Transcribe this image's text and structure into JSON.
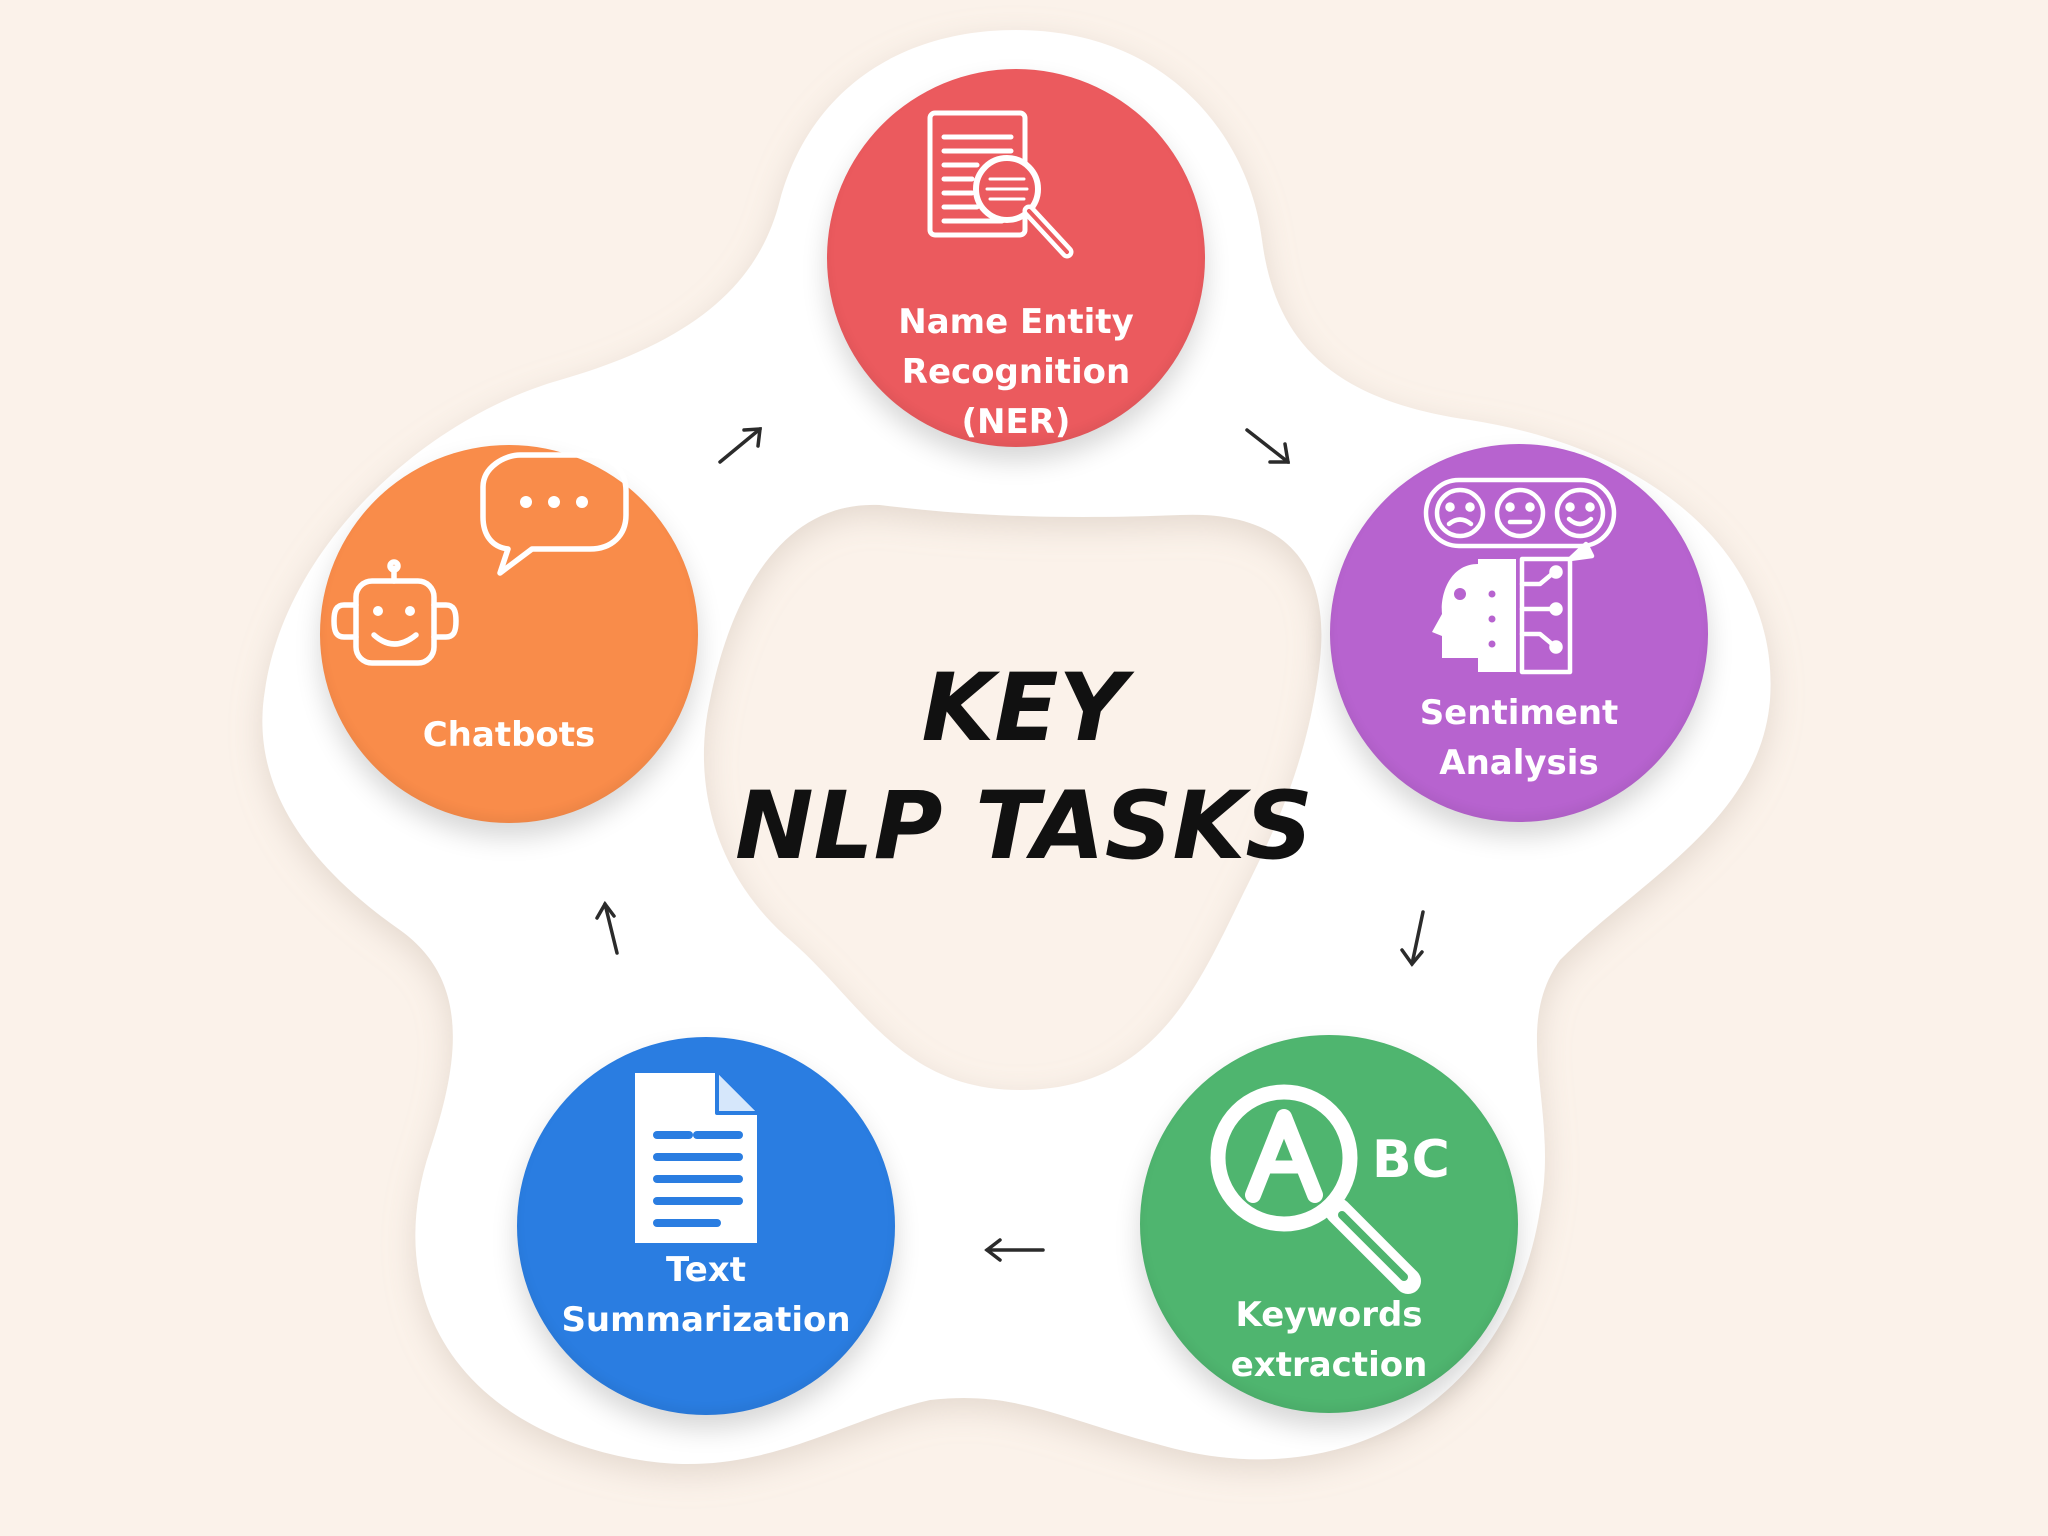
{
  "title": {
    "line1": "KEY",
    "line2": "NLP TASKS"
  },
  "nodes": [
    {
      "id": "ner",
      "label_lines": [
        "Name Entity",
        "Recognition",
        "(NER)"
      ],
      "color": "#eb5a5e",
      "icon": "document-magnifier-icon"
    },
    {
      "id": "sentiment",
      "label_lines": [
        "Sentiment",
        "Analysis"
      ],
      "color": "#b763cf",
      "icon": "emotion-head-icon"
    },
    {
      "id": "keywords",
      "label_lines": [
        "Keywords",
        "extraction"
      ],
      "color": "#4fb56f",
      "icon": "abc-magnifier-icon"
    },
    {
      "id": "summarization",
      "label_lines": [
        "Text",
        "Summarization"
      ],
      "color": "#2a7de1",
      "icon": "document-lines-icon"
    },
    {
      "id": "chatbots",
      "label_lines": [
        "Chatbots"
      ],
      "color": "#f98c4a",
      "icon": "robot-chat-icon"
    }
  ],
  "flow_order": [
    "ner",
    "sentiment",
    "keywords",
    "summarization",
    "chatbots",
    "ner"
  ]
}
